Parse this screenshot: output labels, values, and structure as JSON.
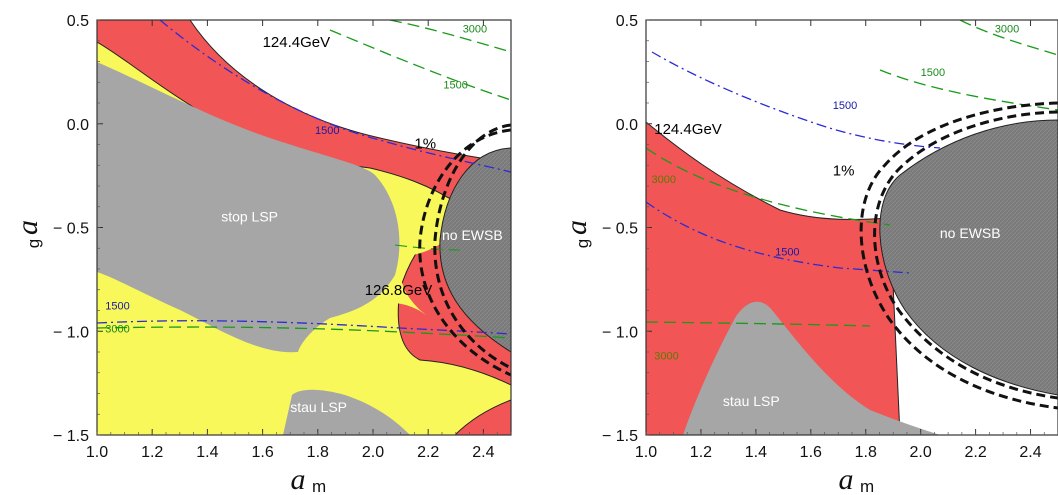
{
  "chart_data": [
    {
      "type": "area",
      "xlabel": "a",
      "xlabel_sub": "m",
      "ylabel": "a",
      "ylabel_sub": "g",
      "xlim": [
        1.0,
        2.5
      ],
      "ylim": [
        -1.5,
        0.5
      ],
      "x_ticks": [
        "1.0",
        "1.2",
        "1.4",
        "1.6",
        "1.8",
        "2.0",
        "2.2",
        "2.4"
      ],
      "y_ticks": [
        "0.5",
        "0.0",
        "− 0.5",
        "− 1.0",
        "− 1.5"
      ],
      "grid": false,
      "colors": {
        "red": "#f25555",
        "yellow": "#f8f85a",
        "gray": "#a6a6a6",
        "darkgray": "#7d7d7d",
        "blue": "#2b2bd6",
        "green": "#1a9a1a"
      },
      "annotations": [
        {
          "text": "124.4GeV",
          "x": 1.6,
          "y": 0.37,
          "color": "#000000"
        },
        {
          "text": "1500",
          "x": 1.79,
          "y": -0.05,
          "color": "#1a1aa8"
        },
        {
          "text": "3000",
          "x": 2.325,
          "y": 0.44,
          "color": "#1a8a1a"
        },
        {
          "text": "1500",
          "x": 2.255,
          "y": 0.17,
          "color": "#1a8a1a"
        },
        {
          "text": "1%",
          "x": 2.15,
          "y": -0.12,
          "color": "#000000"
        },
        {
          "text": "stop LSP",
          "x": 1.45,
          "y": -0.47,
          "color": "#ffffff"
        },
        {
          "text": "no EWSB",
          "x": 2.25,
          "y": -0.56,
          "color": "#ffffff"
        },
        {
          "text": "126.8GeV",
          "x": 1.97,
          "y": -0.825,
          "color": "#000000"
        },
        {
          "text": "1500",
          "x": 1.03,
          "y": -0.895,
          "color": "#1a1aa8"
        },
        {
          "text": "3000",
          "x": 1.03,
          "y": -1.005,
          "color": "#1a8a1a"
        },
        {
          "text": "stau LSP",
          "x": 1.7,
          "y": -1.39,
          "color": "#ffffff"
        }
      ]
    },
    {
      "type": "area",
      "xlabel": "a",
      "xlabel_sub": "m",
      "ylabel": "a",
      "ylabel_sub": "g",
      "xlim": [
        1.0,
        2.5
      ],
      "ylim": [
        -1.5,
        0.5
      ],
      "x_ticks": [
        "1.0",
        "1.2",
        "1.4",
        "1.6",
        "1.8",
        "2.0",
        "2.2",
        "2.4"
      ],
      "y_ticks": [
        "0.5",
        "0.0",
        "− 0.5",
        "− 1.0",
        "− 1.5"
      ],
      "grid": false,
      "colors": {
        "red": "#f25555",
        "gray": "#a6a6a6",
        "darkgray": "#7d7d7d",
        "blue": "#2b2bd6",
        "green": "#1a9a1a"
      },
      "annotations": [
        {
          "text": "3000",
          "x": 2.27,
          "y": 0.44,
          "color": "#1a8a1a"
        },
        {
          "text": "1500",
          "x": 2.0,
          "y": 0.23,
          "color": "#1a8a1a"
        },
        {
          "text": "1500",
          "x": 1.68,
          "y": 0.07,
          "color": "#1a1aa8"
        },
        {
          "text": "124.4GeV",
          "x": 1.03,
          "y": -0.05,
          "color": "#000000"
        },
        {
          "text": "1%",
          "x": 1.68,
          "y": -0.25,
          "color": "#000000"
        },
        {
          "text": "3000",
          "x": 1.02,
          "y": -0.285,
          "color": "#5a7a00"
        },
        {
          "text": "no EWSB",
          "x": 2.07,
          "y": -0.55,
          "color": "#ffffff"
        },
        {
          "text": "1500",
          "x": 1.47,
          "y": -0.635,
          "color": "#1a1aa8"
        },
        {
          "text": "3000",
          "x": 1.03,
          "y": -1.135,
          "color": "#5a7a00"
        },
        {
          "text": "stau LSP",
          "x": 1.28,
          "y": -1.36,
          "color": "#ffffff"
        }
      ]
    }
  ]
}
